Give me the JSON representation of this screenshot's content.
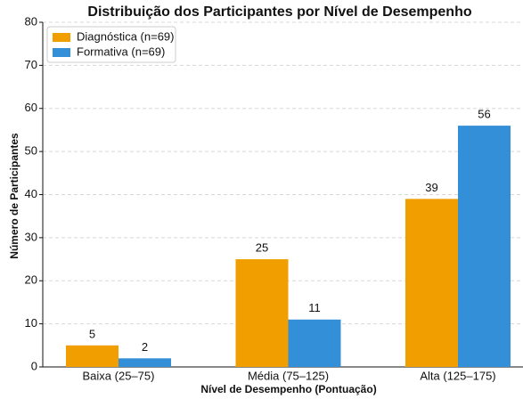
{
  "chart_data": {
    "type": "bar",
    "title": "Distribuição dos Participantes por Nível de Desempenho",
    "xlabel": "Nível de Desempenho (Pontuação)",
    "ylabel": "Número de Participantes",
    "categories": [
      "Baixa (25–75)",
      "Média (75–125)",
      "Alta (125–175)"
    ],
    "series": [
      {
        "name": "Diagnóstica (n=69)",
        "color": "#f09e00",
        "values": [
          5,
          25,
          39
        ]
      },
      {
        "name": "Formativa (n=69)",
        "color": "#338fd8",
        "values": [
          2,
          11,
          56
        ]
      }
    ],
    "ylim": [
      0,
      80
    ],
    "yticks": [
      0,
      10,
      20,
      30,
      40,
      50,
      60,
      70,
      80
    ],
    "grid": true,
    "legend": "upper left"
  }
}
